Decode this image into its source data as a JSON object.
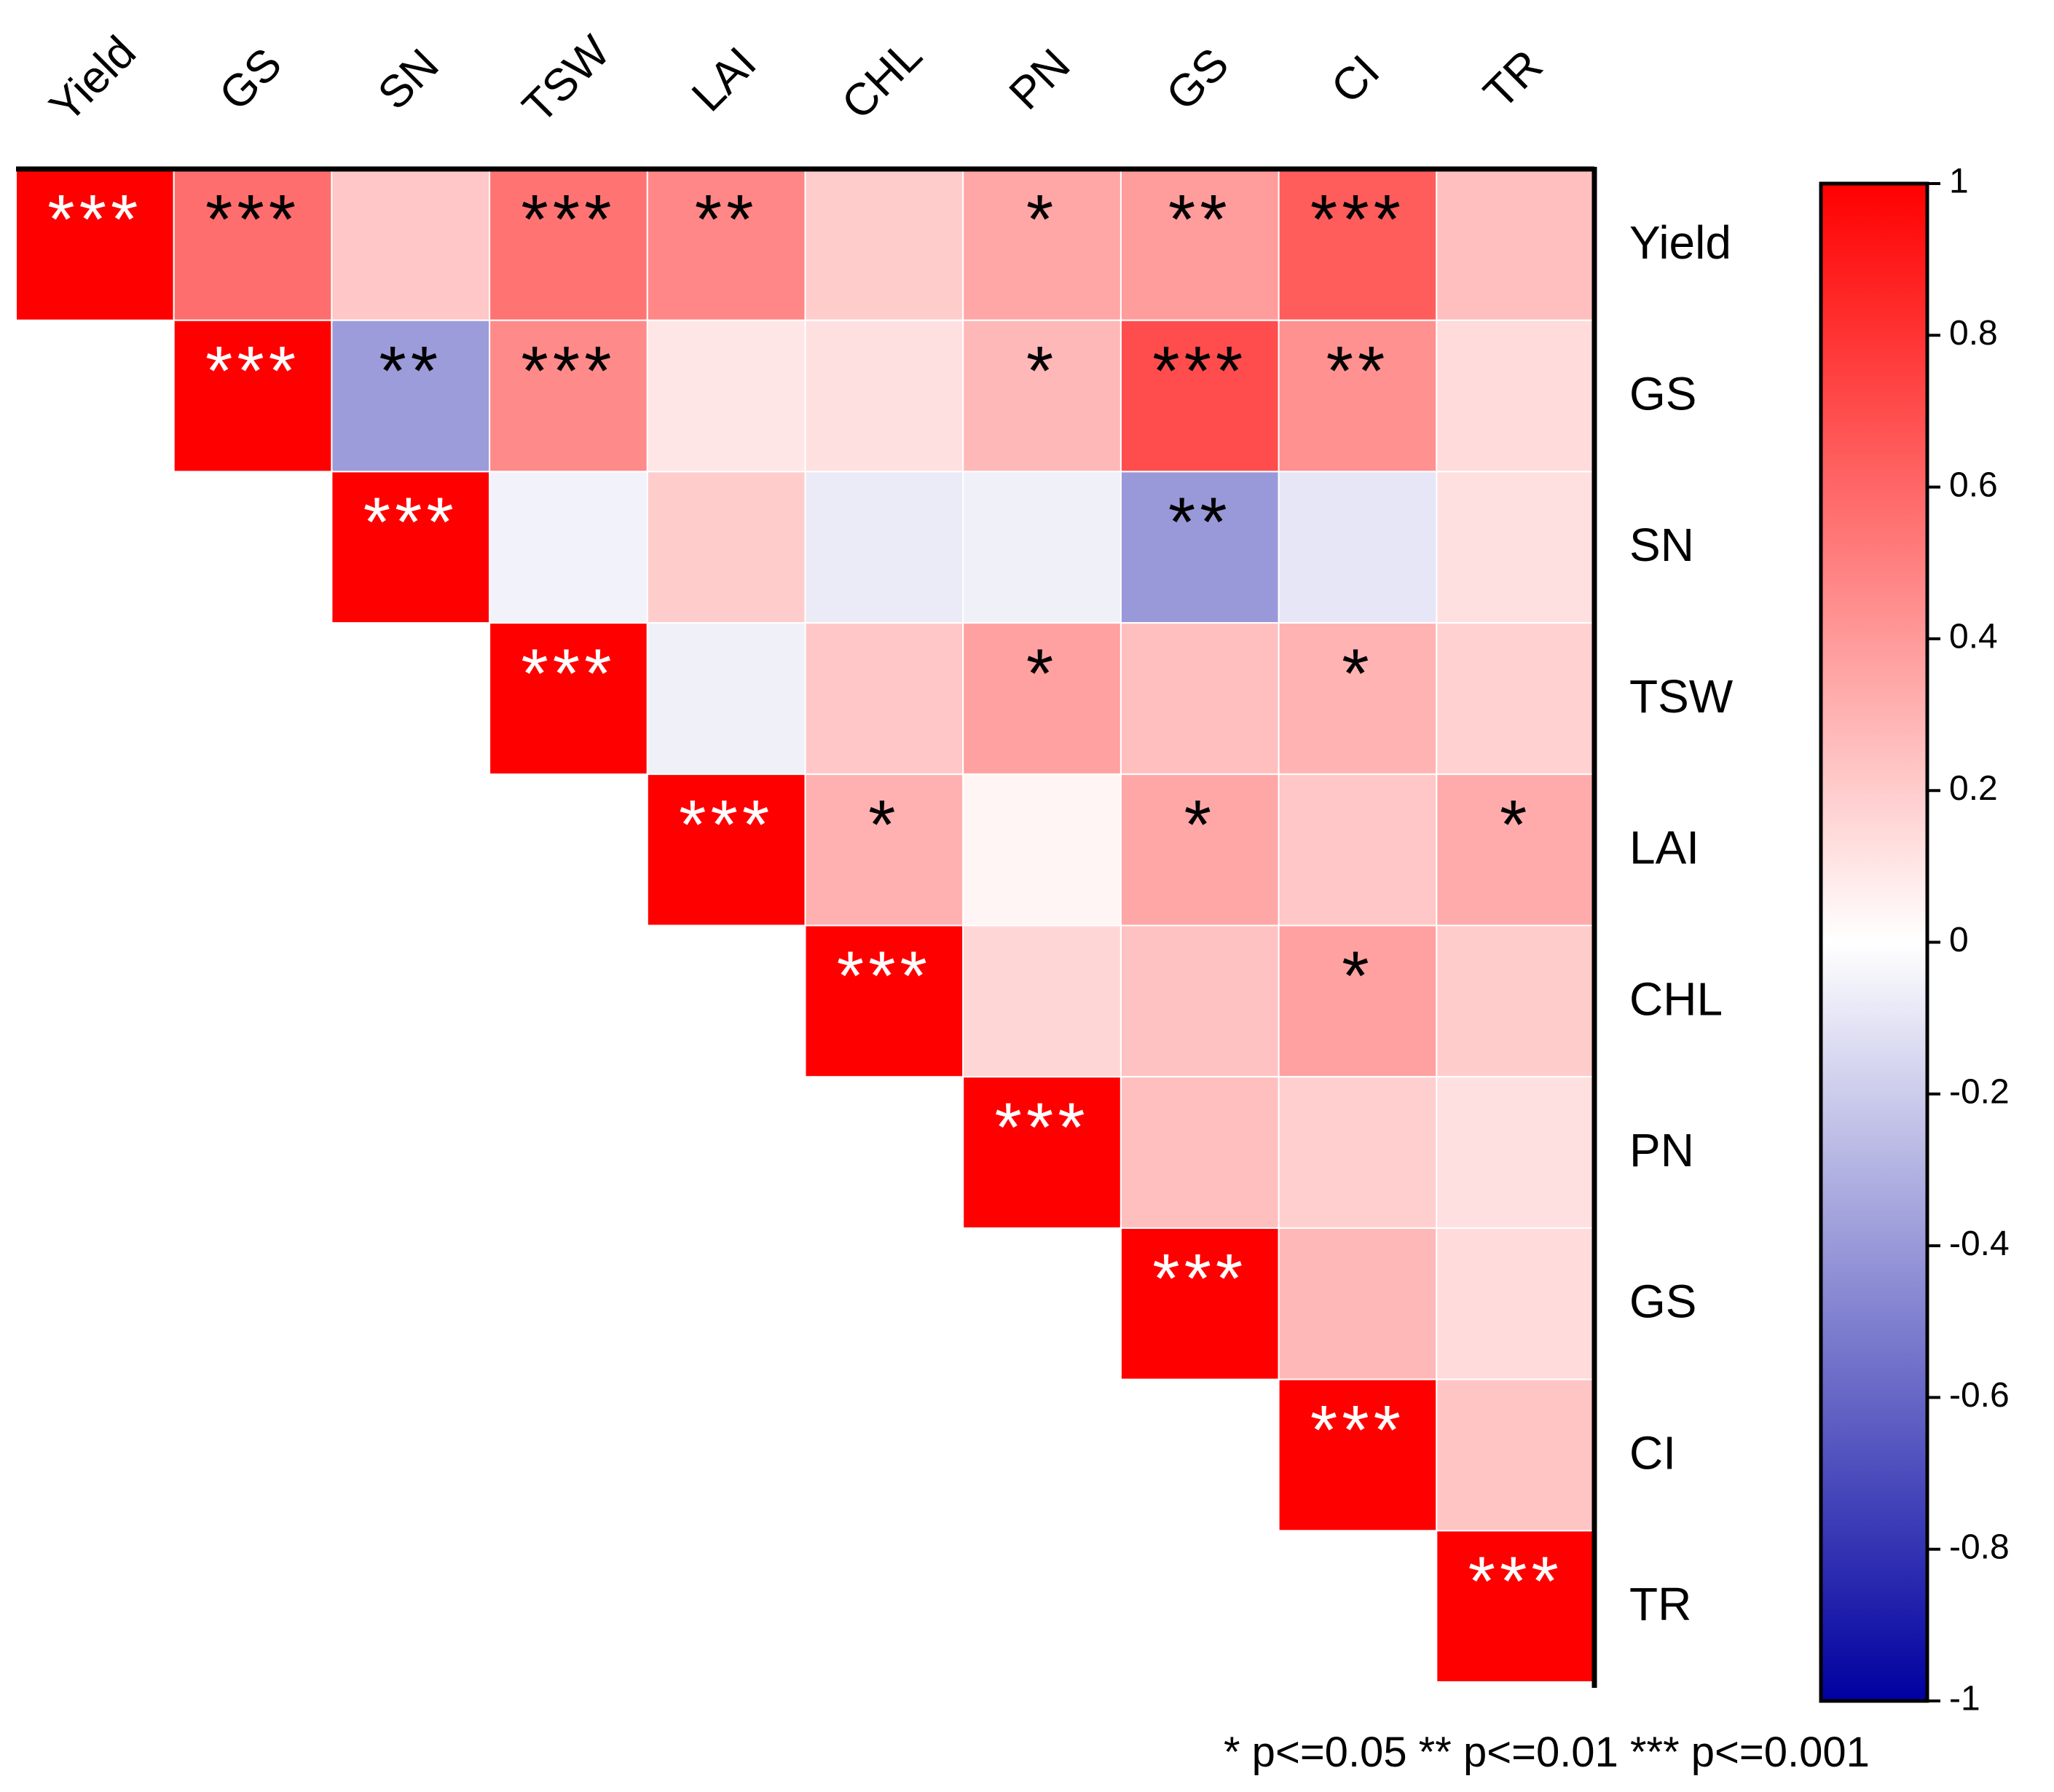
{
  "chart_data": {
    "type": "heatmap",
    "subtype": "correlation-upper-triangle",
    "labels": [
      "Yield",
      "GS",
      "SN",
      "TSW",
      "LAI",
      "CHL",
      "PN",
      "GS",
      "CI",
      "TR"
    ],
    "values": [
      [
        1.0,
        0.57,
        0.22,
        0.55,
        0.47,
        0.2,
        0.35,
        0.39,
        0.64,
        0.25
      ],
      [
        null,
        1.0,
        -0.39,
        0.46,
        0.1,
        0.12,
        0.28,
        0.7,
        0.43,
        0.14
      ],
      [
        null,
        null,
        1.0,
        -0.05,
        0.2,
        -0.08,
        -0.06,
        -0.4,
        -0.1,
        0.12
      ],
      [
        null,
        null,
        null,
        1.0,
        -0.06,
        0.22,
        0.37,
        0.25,
        0.3,
        0.18
      ],
      [
        null,
        null,
        null,
        null,
        1.0,
        0.31,
        0.04,
        0.35,
        0.22,
        0.33
      ],
      [
        null,
        null,
        null,
        null,
        null,
        1.0,
        0.16,
        0.24,
        0.37,
        0.2
      ],
      [
        null,
        null,
        null,
        null,
        null,
        null,
        1.0,
        0.25,
        0.19,
        0.12
      ],
      [
        null,
        null,
        null,
        null,
        null,
        null,
        null,
        1.0,
        0.28,
        0.14
      ],
      [
        null,
        null,
        null,
        null,
        null,
        null,
        null,
        null,
        1.0,
        0.23
      ],
      [
        null,
        null,
        null,
        null,
        null,
        null,
        null,
        null,
        null,
        1.0
      ]
    ],
    "significance": [
      [
        "***",
        "***",
        "",
        "***",
        "**",
        "",
        "*",
        "**",
        "***",
        ""
      ],
      [
        "",
        "***",
        "**",
        "***",
        "",
        "",
        "*",
        "***",
        "**",
        ""
      ],
      [
        "",
        "",
        "***",
        "",
        "",
        "",
        "",
        "**",
        "",
        ""
      ],
      [
        "",
        "",
        "",
        "***",
        "",
        "",
        "*",
        "",
        "*",
        ""
      ],
      [
        "",
        "",
        "",
        "",
        "***",
        "*",
        "",
        "*",
        "",
        "*"
      ],
      [
        "",
        "",
        "",
        "",
        "",
        "***",
        "",
        "",
        "*",
        ""
      ],
      [
        "",
        "",
        "",
        "",
        "",
        "",
        "***",
        "",
        "",
        ""
      ],
      [
        "",
        "",
        "",
        "",
        "",
        "",
        "",
        "***",
        "",
        ""
      ],
      [
        "",
        "",
        "",
        "",
        "",
        "",
        "",
        "",
        "***",
        ""
      ],
      [
        "",
        "",
        "",
        "",
        "",
        "",
        "",
        "",
        "",
        "***"
      ]
    ],
    "colorbar": {
      "range": [
        -1,
        1
      ],
      "ticks": [
        1,
        0.8,
        0.6,
        0.4,
        0.2,
        0,
        -0.2,
        -0.4,
        -0.6,
        -0.8,
        -1
      ],
      "tick_labels": [
        "1",
        "0.8",
        "0.6",
        "0.4",
        "0.2",
        "0",
        "-0.2",
        "-0.4",
        "-0.6",
        "-0.8",
        "-1"
      ],
      "color_low": "#0000a0",
      "color_mid": "#ffffff",
      "color_high": "#ff0000"
    },
    "legend": "* p<=0.05  ** p<=0.01  *** p<=0.001",
    "legend_placement": "bottom-right"
  }
}
